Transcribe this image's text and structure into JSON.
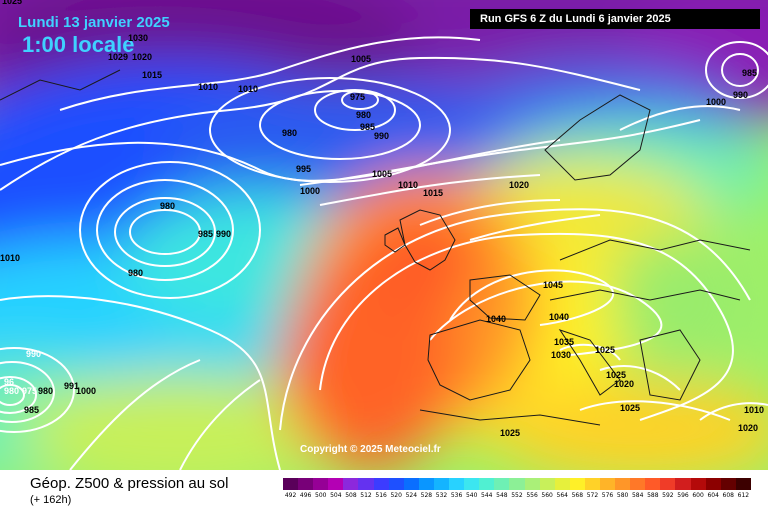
{
  "header": {
    "date": "Lundi 13 janvier 2025",
    "local_time": "1:00 locale",
    "run_info": "Run GFS 6 Z du Lundi 6 janvier 2025"
  },
  "copyright": "Copyright © 2025 Meteociel.fr",
  "footer": {
    "title": "Géop. Z500 & pression au sol",
    "subtitle": "(+ 162h)"
  },
  "scale": {
    "labels": [
      "492",
      "496",
      "500",
      "504",
      "508",
      "512",
      "516",
      "520",
      "524",
      "528",
      "532",
      "536",
      "540",
      "544",
      "548",
      "552",
      "556",
      "560",
      "564",
      "568",
      "572",
      "576",
      "580",
      "584",
      "588",
      "592",
      "596",
      "600",
      "604",
      "608",
      "612"
    ],
    "colors": [
      "#5a005a",
      "#780078",
      "#960096",
      "#b400b4",
      "#8c28dc",
      "#6432f0",
      "#3c3cff",
      "#1e50ff",
      "#0a6eff",
      "#0a96ff",
      "#14b4ff",
      "#28d2ff",
      "#3ce6f0",
      "#50f0d2",
      "#6ef0b4",
      "#8cf096",
      "#aaf078",
      "#c8f05a",
      "#e6f03c",
      "#fff028",
      "#ffd228",
      "#ffb428",
      "#ff9628",
      "#ff7828",
      "#ff5a28",
      "#f03c28",
      "#d21e1e",
      "#b40a0a",
      "#8c0000",
      "#640000",
      "#3c0000"
    ]
  },
  "pressure_labels": [
    "1025",
    "1030",
    "1029",
    "1020",
    "1015",
    "1010",
    "1010",
    "1005",
    "975",
    "980",
    "985",
    "990",
    "980",
    "995",
    "1000",
    "1005",
    "1010",
    "1015",
    "1020",
    "980",
    "985",
    "990",
    "980",
    "1010",
    "990",
    "96",
    "980",
    "975",
    "980",
    "991",
    "1000",
    "985",
    "1045",
    "1040",
    "1040",
    "1035",
    "1030",
    "1025",
    "1025",
    "1020",
    "1025",
    "1020",
    "985",
    "1000",
    "990",
    "1010",
    "1025"
  ]
}
